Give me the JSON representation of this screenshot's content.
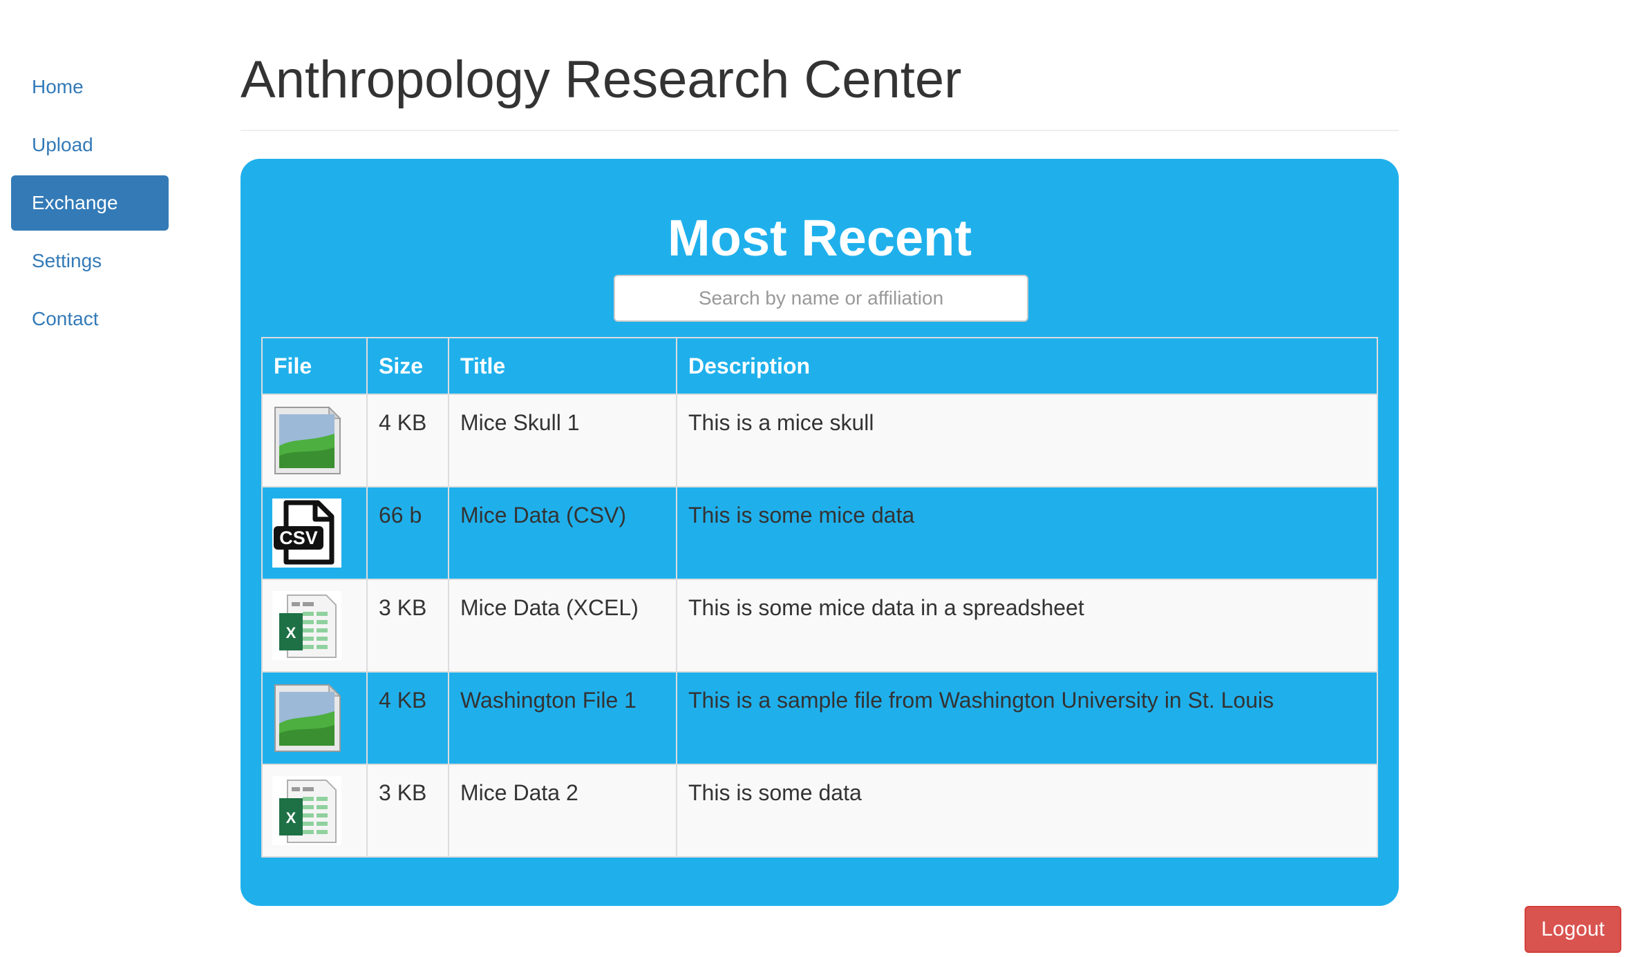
{
  "nav": {
    "items": [
      {
        "label": "Home",
        "active": false
      },
      {
        "label": "Upload",
        "active": false
      },
      {
        "label": "Exchange",
        "active": true
      },
      {
        "label": "Settings",
        "active": false
      },
      {
        "label": "Contact",
        "active": false
      }
    ]
  },
  "header": {
    "title": "Anthropology Research Center"
  },
  "panel": {
    "title": "Most Recent",
    "search_placeholder": "Search by name or affiliation",
    "table": {
      "headers": [
        "File",
        "Size",
        "Title",
        "Description"
      ],
      "rows": [
        {
          "icon": "image-file-icon",
          "size": "4 KB",
          "title": "Mice Skull 1",
          "description": "This is a mice skull"
        },
        {
          "icon": "csv-file-icon",
          "size": "66 b",
          "title": "Mice Data (CSV)",
          "description": "This is some mice data"
        },
        {
          "icon": "excel-file-icon",
          "size": "3 KB",
          "title": "Mice Data (XCEL)",
          "description": "This is some mice data in a spreadsheet"
        },
        {
          "icon": "image-file-icon",
          "size": "4 KB",
          "title": "Washington File 1",
          "description": "This is a sample file from Washington University in St. Louis"
        },
        {
          "icon": "excel-file-icon",
          "size": "3 KB",
          "title": "Mice Data 2",
          "description": "This is some data"
        }
      ]
    }
  },
  "logout_label": "Logout",
  "colors": {
    "panel": "#1fb0ec",
    "nav_link": "#337ab7",
    "nav_active_bg": "#337ab7",
    "logout": "#d9534f",
    "row_light": "#f9f9f9"
  }
}
